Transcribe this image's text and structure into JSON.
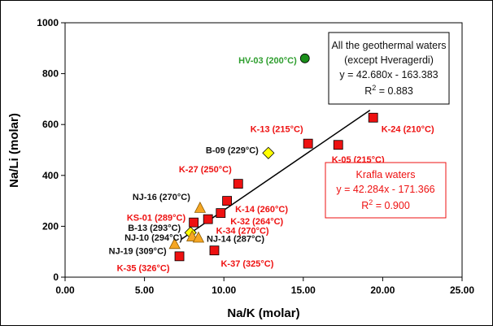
{
  "chart_data": {
    "type": "scatter",
    "xlabel": "Na/K (molar)",
    "ylabel": "Na/Li (molar)",
    "xlim": [
      0,
      25
    ],
    "ylim": [
      0,
      1000
    ],
    "x_ticks": [
      "0.00",
      "5.00",
      "10.00",
      "15.00",
      "20.00",
      "25.00"
    ],
    "y_ticks": [
      "0",
      "200",
      "400",
      "600",
      "800",
      "1000"
    ],
    "x_tick_values": [
      0,
      5,
      10,
      15,
      20,
      25
    ],
    "y_tick_values": [
      0,
      200,
      400,
      600,
      800,
      1000
    ],
    "grid": false,
    "colors": {
      "red": "#ee1111",
      "orange": "#f5a623",
      "yellow": "#ffff00",
      "green": "#1a8f1a",
      "black": "#111111"
    },
    "points": [
      {
        "label": "HV-03 (200°C)",
        "x": 15.1,
        "y": 860,
        "marker": "circle",
        "color": "#1a8f1a",
        "label_color": "#2e9e2e"
      },
      {
        "label": "K-13 (215°C)",
        "x": 15.3,
        "y": 525,
        "marker": "square",
        "color": "#ee1111",
        "label_color": "#ee1111"
      },
      {
        "label": "K-24 (210°C)",
        "x": 19.4,
        "y": 627,
        "marker": "square",
        "color": "#ee1111",
        "label_color": "#ee1111"
      },
      {
        "label": "K-05 (215°C)",
        "x": 17.2,
        "y": 520,
        "marker": "square",
        "color": "#ee1111",
        "label_color": "#ee1111"
      },
      {
        "label": "B-09 (229°C)",
        "x": 12.8,
        "y": 488,
        "marker": "diamond",
        "color": "#ffff00",
        "label_color": "#111111"
      },
      {
        "label": "K-27 (250°C)",
        "x": 10.9,
        "y": 367,
        "marker": "square",
        "color": "#ee1111",
        "label_color": "#ee1111"
      },
      {
        "label": "K-14 (260°C)",
        "x": 10.2,
        "y": 300,
        "marker": "square",
        "color": "#ee1111",
        "label_color": "#ee1111"
      },
      {
        "label": "K-32 (264°C)",
        "x": 9.8,
        "y": 252,
        "marker": "square",
        "color": "#ee1111",
        "label_color": "#ee1111"
      },
      {
        "label": "K-34 (270°C)",
        "x": 9.0,
        "y": 228,
        "marker": "square",
        "color": "#ee1111",
        "label_color": "#ee1111"
      },
      {
        "label": "NJ-16 (270°C)",
        "x": 8.5,
        "y": 272,
        "marker": "triangle",
        "color": "#f5a623",
        "label_color": "#111111"
      },
      {
        "label": "KS-01 (289°C)",
        "x": 8.1,
        "y": 215,
        "marker": "square",
        "color": "#ee1111",
        "label_color": "#ee1111"
      },
      {
        "label": "B-13 (293°C)",
        "x": 7.9,
        "y": 175,
        "marker": "diamond",
        "color": "#ffff00",
        "label_color": "#111111"
      },
      {
        "label": "NJ-10 (294°C)",
        "x": 8.0,
        "y": 160,
        "marker": "triangle",
        "color": "#f5a623",
        "label_color": "#111111"
      },
      {
        "label": "NJ-14 (287°C)",
        "x": 8.4,
        "y": 155,
        "marker": "triangle",
        "color": "#f5a623",
        "label_color": "#111111"
      },
      {
        "label": "NJ-19 (309°C)",
        "x": 6.9,
        "y": 130,
        "marker": "triangle",
        "color": "#f5a623",
        "label_color": "#111111"
      },
      {
        "label": "K-35 (326°C)",
        "x": 7.2,
        "y": 82,
        "marker": "square",
        "color": "#ee1111",
        "label_color": "#ee1111"
      },
      {
        "label": "K-37 (325°C)",
        "x": 9.4,
        "y": 105,
        "marker": "square",
        "color": "#ee1111",
        "label_color": "#ee1111"
      }
    ],
    "regression_line": {
      "slope": 42.68,
      "intercept": -163.383,
      "x_start": 7.3,
      "x_end": 19.2
    },
    "annotations": {
      "all_waters": {
        "lines": [
          "All the geothermal waters",
          "(except Hveragerdi)",
          "y = 42.680x - 163.383"
        ],
        "r2_prefix": "R",
        "r2_exp": "2",
        "r2_value": " = 0.883",
        "color": "#111111"
      },
      "krafla": {
        "lines": [
          "Krafla waters",
          "y = 42.284x - 171.366"
        ],
        "r2_prefix": "R",
        "r2_exp": "2",
        "r2_value": " = 0.900",
        "color": "#ee1111"
      }
    }
  }
}
